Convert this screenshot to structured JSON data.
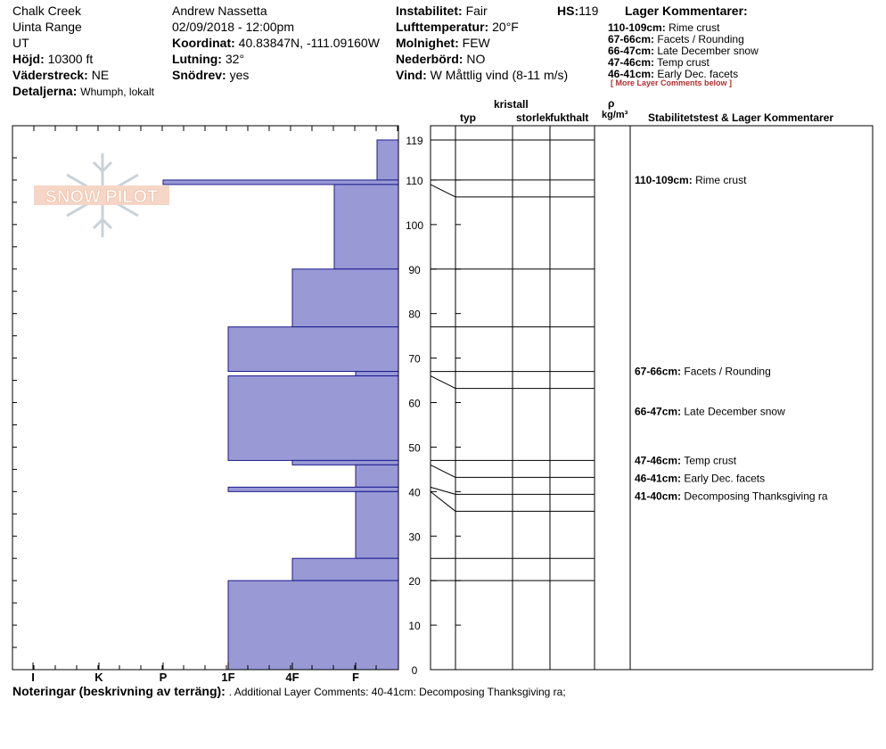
{
  "header": {
    "location": "Chalk Creek",
    "range": "Uinta Range",
    "state": "UT",
    "elevation_label": "Höjd:",
    "elevation_value": "10300 ft",
    "aspect_label": "Väderstreck:",
    "aspect_value": "NE",
    "details_label": "Detaljerna:",
    "details_value": "Whumph, lokalt",
    "observer": "Andrew Nassetta",
    "datetime": "02/09/2018 - 12:00pm",
    "coord_label": "Koordinat:",
    "coord_value": "40.83847N, -111.09160W",
    "slope_label": "Lutning:",
    "slope_value": "32°",
    "drift_label": "Snödrev:",
    "drift_value": "yes",
    "stability_label": "Instabilitet:",
    "stability_value": "Fair",
    "airtemp_label": "Lufttemperatur:",
    "airtemp_value": "20°F",
    "sky_label": "Molnighet:",
    "sky_value": "FEW",
    "precip_label": "Nederbörd:",
    "precip_value": "NO",
    "wind_label": "Vind:",
    "wind_value": "W Måttlig vind (8-11 m/s)",
    "hs_label": "HS:",
    "hs_value": "119",
    "layer_comments_title": "Lager Kommentarer:",
    "layer_comments": [
      {
        "range": "110-109cm:",
        "text": "Rime crust"
      },
      {
        "range": "67-66cm:",
        "text": "Facets / Rounding"
      },
      {
        "range": "66-47cm:",
        "text": "Late December snow"
      },
      {
        "range": "47-46cm:",
        "text": "Temp crust"
      },
      {
        "range": "46-41cm:",
        "text": "Early Dec. facets"
      }
    ],
    "more_comments": "[ More Layer Comments below ]"
  },
  "logo_text": "SNOW PILOT",
  "columns": {
    "kristall": "kristall",
    "typ": "typ",
    "storlek": "storlek",
    "fukthalt": "fukthalt",
    "rho": "ρ",
    "density_unit": "kg/m³",
    "stability_title": "Stabilitetstest & Lager Kommentarer"
  },
  "footer": {
    "notes_label": "Noteringar (beskrivning av terräng):",
    "notes_value": ". Additional Layer Comments: 40-41cm: Decomposing Thanksgiving ra;"
  },
  "colors": {
    "hardness_fill": "#9999d6",
    "hardness_stroke": "#1a1a8c",
    "logo": "#f0c0a8"
  },
  "chart_data": {
    "type": "bar",
    "title": "",
    "xlabel": "",
    "ylabel": "",
    "hardness_scale": [
      "I",
      "K",
      "P",
      "1F",
      "4F",
      "F"
    ],
    "ylim": [
      0,
      119
    ],
    "y_ticks": [
      0,
      10,
      20,
      30,
      40,
      50,
      60,
      70,
      80,
      90,
      100,
      110,
      119
    ],
    "layers": [
      {
        "top": 119,
        "bottom": 110,
        "hardness": "F-"
      },
      {
        "top": 110,
        "bottom": 109,
        "hardness": "P"
      },
      {
        "top": 109,
        "bottom": 90,
        "hardness": "4F+"
      },
      {
        "top": 90,
        "bottom": 77,
        "hardness": "4F"
      },
      {
        "top": 77,
        "bottom": 67,
        "hardness": "1F"
      },
      {
        "top": 67,
        "bottom": 66,
        "hardness": "F"
      },
      {
        "top": 66,
        "bottom": 47,
        "hardness": "1F"
      },
      {
        "top": 47,
        "bottom": 46,
        "hardness": "4F"
      },
      {
        "top": 46,
        "bottom": 41,
        "hardness": "F"
      },
      {
        "top": 41,
        "bottom": 40,
        "hardness": "1F"
      },
      {
        "top": 40,
        "bottom": 25,
        "hardness": "F"
      },
      {
        "top": 25,
        "bottom": 20,
        "hardness": "4F"
      },
      {
        "top": 20,
        "bottom": 0,
        "hardness": "1F"
      }
    ],
    "layer_boundaries": [
      119,
      110,
      109,
      90,
      77,
      67,
      66,
      47,
      46,
      41,
      40,
      25,
      20
    ],
    "profile_comments": [
      {
        "depth": 110,
        "range": "110-109cm:",
        "text": "Rime crust"
      },
      {
        "depth": 67,
        "range": "67-66cm:",
        "text": "Facets / Rounding"
      },
      {
        "depth": 58,
        "range": "66-47cm:",
        "text": "Late December snow"
      },
      {
        "depth": 47,
        "range": "47-46cm:",
        "text": "Temp crust"
      },
      {
        "depth": 44,
        "range": "46-41cm:",
        "text": "Early Dec. facets"
      },
      {
        "depth": 41,
        "range": "41-40cm:",
        "text": "Decomposing Thanksgiving ra"
      }
    ]
  }
}
